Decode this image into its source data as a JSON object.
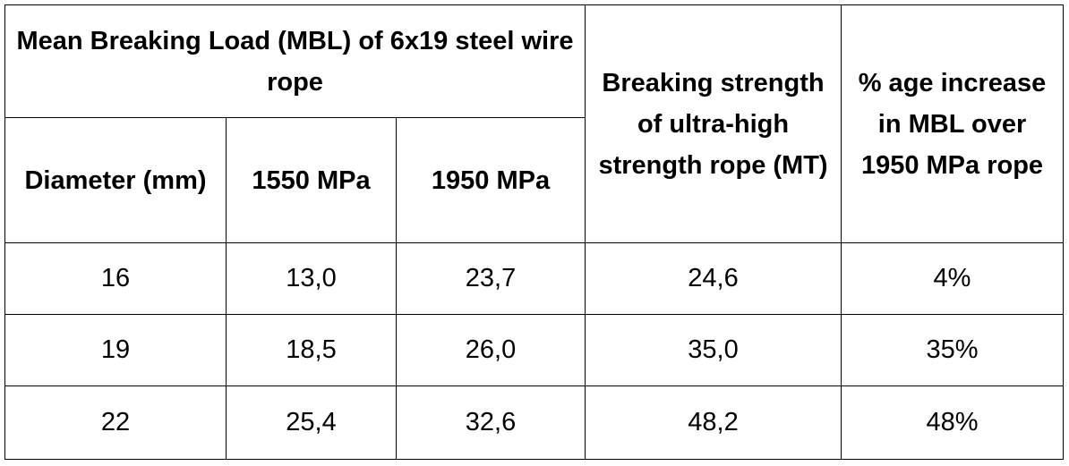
{
  "table": {
    "group_header": "Mean Breaking Load (MBL) of 6x19 steel wire rope",
    "headers": {
      "diameter": "Diameter (mm)",
      "mpa_1550": "1550 MPa",
      "mpa_1950": "1950 MPa",
      "uhs_strength": "Breaking strength of ultra-high strength rope (MT)",
      "pct_increase": "% age increase in MBL over 1950 MPa rope"
    },
    "rows": [
      {
        "diameter": "16",
        "mpa_1550": "13,0",
        "mpa_1950": "23,7",
        "uhs": "24,6",
        "increase": "4%"
      },
      {
        "diameter": "19",
        "mpa_1550": "18,5",
        "mpa_1950": "26,0",
        "uhs": "35,0",
        "increase": "35%"
      },
      {
        "diameter": "22",
        "mpa_1550": "25,4",
        "mpa_1950": "32,6",
        "uhs": "48,2",
        "increase": "48%"
      }
    ]
  }
}
